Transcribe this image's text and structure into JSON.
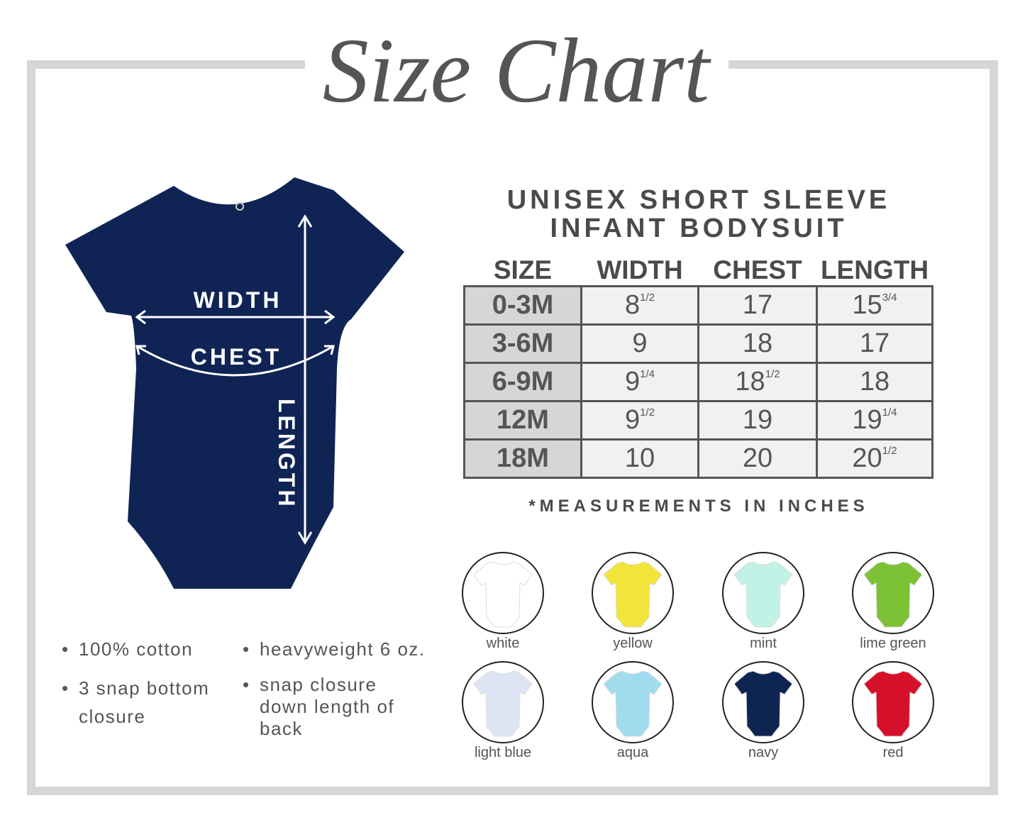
{
  "title": "Size Chart",
  "heading": {
    "line1": "UNISEX SHORT SLEEVE",
    "line2": "INFANT BODYSUIT"
  },
  "diagram": {
    "width_label": "WIDTH",
    "chest_label": "CHEST",
    "length_label": "LENGTH",
    "garment_color": "#0f2454"
  },
  "table": {
    "headers": [
      "SIZE",
      "WIDTH",
      "CHEST",
      "LENGTH"
    ],
    "rows": [
      {
        "size": "0-3M",
        "width": {
          "n": "8",
          "f": "1/2"
        },
        "chest": {
          "n": "17",
          "f": ""
        },
        "length": {
          "n": "15",
          "f": "3/4"
        }
      },
      {
        "size": "3-6M",
        "width": {
          "n": "9",
          "f": ""
        },
        "chest": {
          "n": "18",
          "f": ""
        },
        "length": {
          "n": "17",
          "f": ""
        }
      },
      {
        "size": "6-9M",
        "width": {
          "n": "9",
          "f": "1/4"
        },
        "chest": {
          "n": "18",
          "f": "1/2"
        },
        "length": {
          "n": "18",
          "f": ""
        }
      },
      {
        "size": "12M",
        "width": {
          "n": "9",
          "f": "1/2"
        },
        "chest": {
          "n": "19",
          "f": ""
        },
        "length": {
          "n": "19",
          "f": "1/4"
        }
      },
      {
        "size": "18M",
        "width": {
          "n": "10",
          "f": ""
        },
        "chest": {
          "n": "20",
          "f": ""
        },
        "length": {
          "n": "20",
          "f": "1/2"
        }
      }
    ]
  },
  "note": "*MEASUREMENTS IN INCHES",
  "features": [
    "100% cotton",
    "heavyweight 6 oz.",
    "3 snap bottom closure",
    "snap closure down length of back"
  ],
  "colors": [
    {
      "name": "white",
      "hex": "#ffffff"
    },
    {
      "name": "yellow",
      "hex": "#f2e43a"
    },
    {
      "name": "mint",
      "hex": "#c2f2e6"
    },
    {
      "name": "lime green",
      "hex": "#7cc234"
    },
    {
      "name": "light blue",
      "hex": "#dde5f4"
    },
    {
      "name": "aqua",
      "hex": "#a0dcee"
    },
    {
      "name": "navy",
      "hex": "#0e2552"
    },
    {
      "name": "red",
      "hex": "#d6102a"
    }
  ]
}
